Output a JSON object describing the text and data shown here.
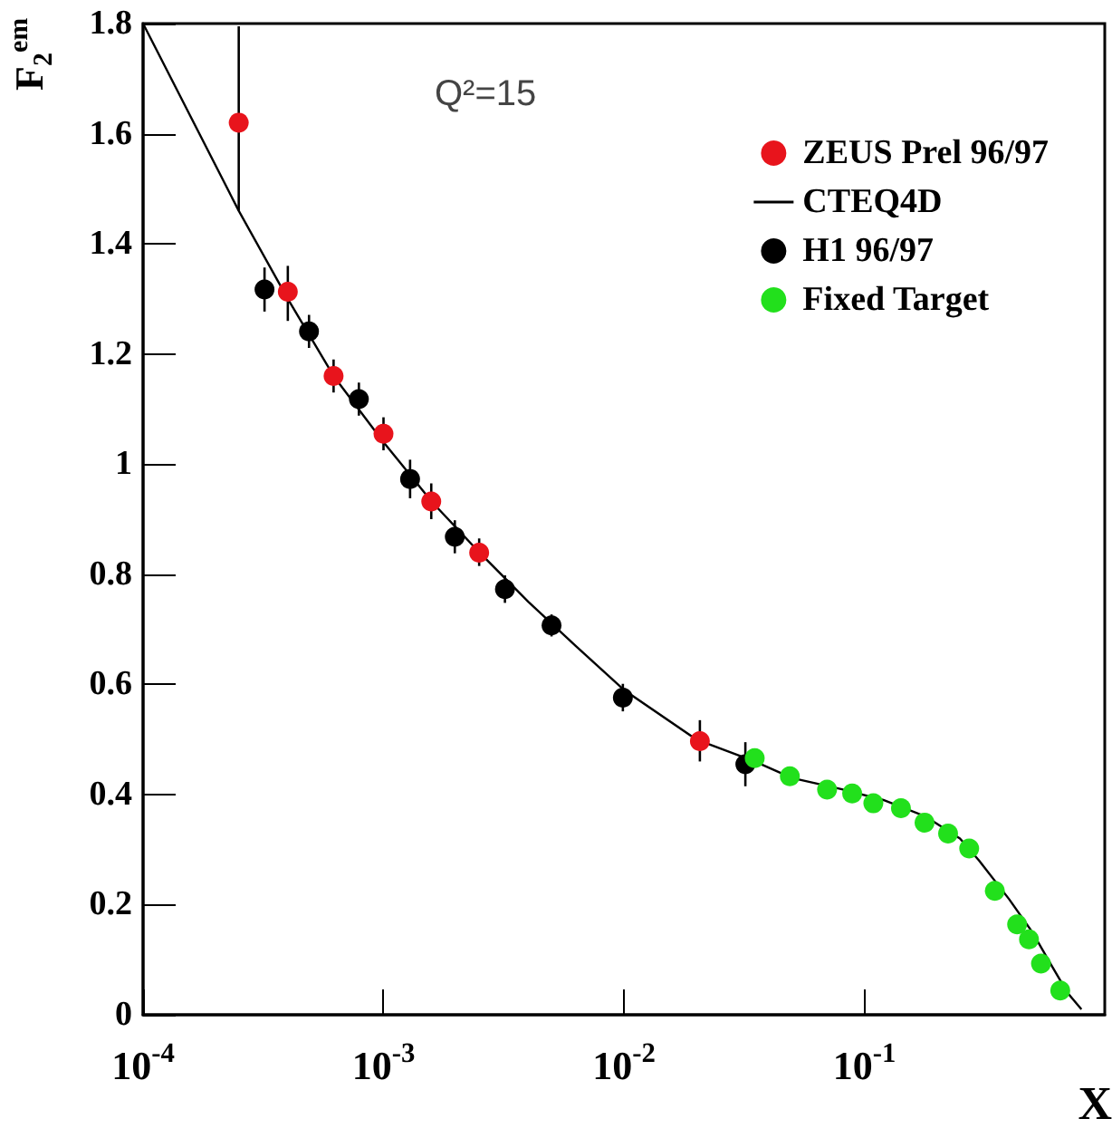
{
  "chart_data": {
    "type": "scatter",
    "ylabel": "F$_{2}$$^{em}$",
    "xlabel": "X",
    "annotations": [
      "Q²=15"
    ],
    "log": "x",
    "xlim": [
      0.0001,
      1
    ],
    "ylim": [
      0,
      1.8
    ],
    "xticks": [
      {
        "value": 0.0001,
        "label": "10$^{-4}$"
      },
      {
        "value": 0.001,
        "label": "10$^{-3}$"
      },
      {
        "value": 0.01,
        "label": "10$^{-2}$"
      },
      {
        "value": 0.1,
        "label": "10$^{-1}$"
      }
    ],
    "yticks": [
      0,
      0.2,
      0.4,
      0.6,
      0.8,
      1,
      1.2,
      1.4,
      1.6,
      1.8
    ],
    "grid": false,
    "legend": "top right",
    "series": [
      {
        "name": "ZEUS Prel 96/97",
        "marker": "circle",
        "color": "#e8141c",
        "x": [
          0.00025,
          0.0004,
          0.00062,
          0.001,
          0.00158,
          0.0025,
          0.0207
        ],
        "values": [
          1.62,
          1.313,
          1.16,
          1.055,
          0.932,
          0.839,
          0.497
        ],
        "errors": [
          [
            1.46,
            1.795
          ],
          [
            1.26,
            1.36
          ],
          [
            1.13,
            1.19
          ],
          [
            1.025,
            1.085
          ],
          [
            0.9,
            0.965
          ],
          [
            0.815,
            0.865
          ],
          [
            0.46,
            0.535
          ]
        ]
      },
      {
        "name": "CTEQ4D",
        "type": "line",
        "marker": "none",
        "color": "#000000",
        "x": [
          0.0001,
          0.00025,
          0.0004,
          0.00062,
          0.001,
          0.0016,
          0.0025,
          0.004,
          0.0063,
          0.01,
          0.02,
          0.035,
          0.05,
          0.08,
          0.12,
          0.18,
          0.25,
          0.3,
          0.4,
          0.5,
          0.6,
          0.7,
          0.8
        ],
        "values": [
          1.8,
          1.46,
          1.3,
          1.16,
          1.04,
          0.93,
          0.84,
          0.75,
          0.67,
          0.59,
          0.5,
          0.46,
          0.43,
          0.41,
          0.39,
          0.36,
          0.32,
          0.28,
          0.21,
          0.15,
          0.09,
          0.04,
          0.01
        ]
      },
      {
        "name": "H1 96/97",
        "marker": "circle",
        "color": "#000000",
        "x": [
          0.00032,
          0.00049,
          0.00079,
          0.00129,
          0.00198,
          0.0032,
          0.005,
          0.0099,
          0.032
        ],
        "values": [
          1.317,
          1.241,
          1.118,
          0.973,
          0.868,
          0.773,
          0.707,
          0.576,
          0.455
        ],
        "errors": [
          [
            1.277,
            1.357
          ],
          [
            1.211,
            1.271
          ],
          [
            1.088,
            1.148
          ],
          [
            0.938,
            1.008
          ],
          [
            0.838,
            0.898
          ],
          [
            0.748,
            0.798
          ],
          [
            0.687,
            0.727
          ],
          [
            0.551,
            0.601
          ],
          [
            0.415,
            0.495
          ]
        ]
      },
      {
        "name": "Fixed Target",
        "marker": "circle",
        "color": "#22e01c",
        "x": [
          0.035,
          0.049,
          0.07,
          0.089,
          0.109,
          0.142,
          0.178,
          0.223,
          0.273,
          0.349,
          0.432,
          0.484,
          0.543,
          0.653
        ],
        "values": [
          0.466,
          0.433,
          0.409,
          0.402,
          0.384,
          0.375,
          0.349,
          0.329,
          0.302,
          0.225,
          0.164,
          0.137,
          0.093,
          0.044
        ]
      }
    ]
  }
}
